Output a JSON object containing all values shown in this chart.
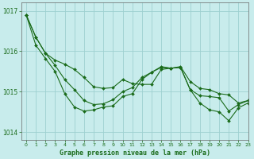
{
  "title": "Graphe pression niveau de la mer (hPa)",
  "bg_color": "#c8ecec",
  "grid_color": "#9ed0d0",
  "line_color": "#1a6b1a",
  "marker_color": "#1a6b1a",
  "xlim": [
    -0.5,
    23
  ],
  "ylim": [
    1013.8,
    1017.2
  ],
  "yticks": [
    1014,
    1015,
    1016,
    1017
  ],
  "xticks": [
    0,
    1,
    2,
    3,
    4,
    5,
    6,
    7,
    8,
    9,
    10,
    11,
    12,
    13,
    14,
    15,
    16,
    17,
    18,
    19,
    20,
    21,
    22,
    23
  ],
  "series1": [
    1016.9,
    1016.35,
    1015.95,
    1015.78,
    1015.68,
    1015.55,
    1015.35,
    1015.12,
    1015.08,
    1015.1,
    1015.3,
    1015.2,
    1015.18,
    1015.18,
    1015.55,
    1015.58,
    1015.62,
    1015.25,
    1015.08,
    1015.05,
    1014.95,
    1014.92,
    1014.72,
    1014.78
  ],
  "series2": [
    1016.9,
    1016.35,
    1015.95,
    1015.65,
    1015.3,
    1015.05,
    1014.78,
    1014.68,
    1014.7,
    1014.8,
    1015.0,
    1015.1,
    1015.35,
    1015.48,
    1015.6,
    1015.58,
    1015.6,
    1015.05,
    1014.9,
    1014.88,
    1014.85,
    1014.52,
    1014.68,
    1014.78
  ],
  "series3": [
    1016.9,
    1016.15,
    1015.82,
    1015.5,
    1014.95,
    1014.62,
    1014.52,
    1014.55,
    1014.62,
    1014.65,
    1014.88,
    1014.95,
    1015.3,
    1015.48,
    1015.62,
    1015.58,
    1015.6,
    1015.05,
    1014.72,
    1014.55,
    1014.5,
    1014.28,
    1014.6,
    1014.72
  ]
}
